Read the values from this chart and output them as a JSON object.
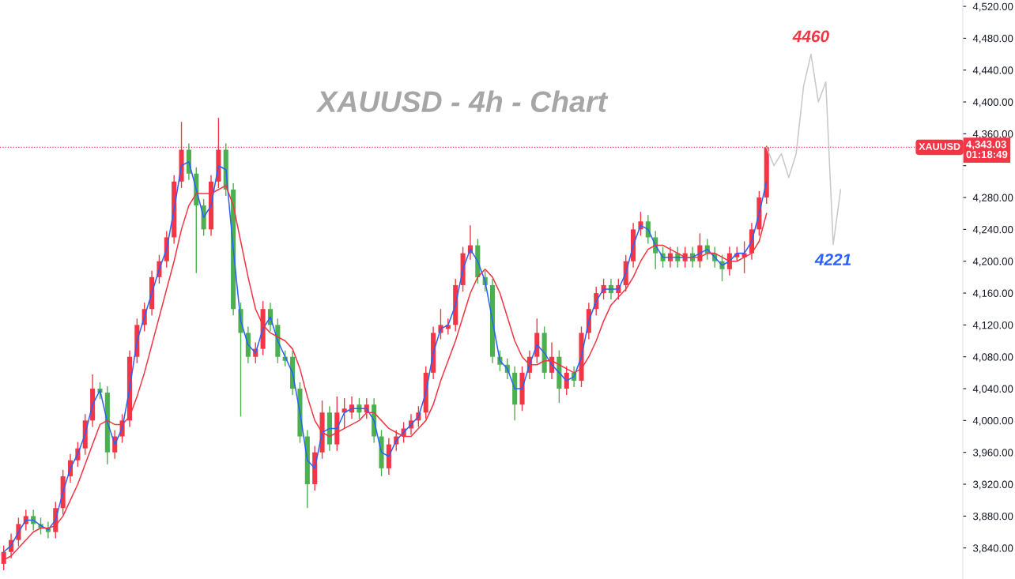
{
  "chart_data": {
    "type": "candlestick",
    "title": "XAUUSD - 4h - Chart",
    "categories": [
      null,
      null,
      null,
      null,
      null,
      null,
      null,
      null,
      null,
      null,
      null,
      null,
      null,
      null,
      null,
      null,
      null,
      null,
      null,
      null,
      null,
      null,
      null,
      null,
      null,
      null,
      null,
      null,
      null,
      null,
      null,
      null,
      null,
      null,
      null,
      null,
      null,
      null,
      null,
      null,
      null,
      null,
      null,
      null,
      null,
      null,
      null,
      null,
      null,
      null,
      null,
      null,
      null,
      null,
      null,
      null,
      null,
      null,
      null,
      null,
      null,
      null,
      null,
      null,
      null,
      null,
      null,
      null,
      null,
      null,
      null,
      null,
      null,
      null,
      null,
      null,
      null,
      null,
      null,
      null,
      null,
      null,
      null,
      null,
      null,
      null,
      null,
      null,
      null,
      null,
      null,
      null,
      null,
      null,
      null,
      null,
      null,
      null,
      null,
      null,
      null,
      null,
      null,
      null,
      null,
      null,
      null,
      null,
      null,
      null,
      null,
      null,
      null,
      null,
      null,
      null,
      null,
      null,
      null,
      null,
      null,
      null,
      null,
      null,
      null,
      null,
      null,
      null,
      null,
      null
    ],
    "ohlc": [
      [
        3820,
        3843,
        3812,
        3835
      ],
      [
        3835,
        3858,
        3827,
        3850
      ],
      [
        3850,
        3878,
        3842,
        3870
      ],
      [
        3870,
        3888,
        3862,
        3880
      ],
      [
        3880,
        3888,
        3862,
        3870
      ],
      [
        3870,
        3878,
        3857,
        3865
      ],
      [
        3865,
        3873,
        3852,
        3860
      ],
      [
        3860,
        3898,
        3852,
        3890
      ],
      [
        3890,
        3938,
        3882,
        3930
      ],
      [
        3930,
        3958,
        3922,
        3950
      ],
      [
        3950,
        3973,
        3942,
        3965
      ],
      [
        3965,
        4008,
        3957,
        4000
      ],
      [
        4000,
        4058,
        3992,
        4040
      ],
      [
        4040,
        4048,
        4027,
        4035
      ],
      [
        4035,
        4043,
        3945,
        3960
      ],
      [
        3960,
        3988,
        3952,
        3980
      ],
      [
        3980,
        4008,
        3972,
        4000
      ],
      [
        4000,
        4088,
        3992,
        4080
      ],
      [
        4080,
        4128,
        4072,
        4120
      ],
      [
        4120,
        4148,
        4112,
        4140
      ],
      [
        4140,
        4188,
        4132,
        4180
      ],
      [
        4180,
        4208,
        4172,
        4200
      ],
      [
        4200,
        4238,
        4192,
        4230
      ],
      [
        4230,
        4308,
        4222,
        4300
      ],
      [
        4300,
        4375,
        4292,
        4340
      ],
      [
        4340,
        4348,
        4302,
        4310
      ],
      [
        4310,
        4318,
        4185,
        4270
      ],
      [
        4270,
        4278,
        4232,
        4240
      ],
      [
        4240,
        4308,
        4232,
        4300
      ],
      [
        4300,
        4380,
        4292,
        4340
      ],
      [
        4340,
        4348,
        4282,
        4290
      ],
      [
        4290,
        4298,
        4132,
        4140
      ],
      [
        4140,
        4148,
        4005,
        4110
      ],
      [
        4110,
        4118,
        4072,
        4080
      ],
      [
        4080,
        4098,
        4072,
        4090
      ],
      [
        4090,
        4150,
        4082,
        4140
      ],
      [
        4140,
        4148,
        4112,
        4120
      ],
      [
        4120,
        4128,
        4072,
        4080
      ],
      [
        4080,
        4088,
        4068,
        4075
      ],
      [
        4080,
        4088,
        4032,
        4040
      ],
      [
        4040,
        4048,
        3972,
        3980
      ],
      [
        3980,
        3988,
        3890,
        3920
      ],
      [
        3920,
        3968,
        3912,
        3960
      ],
      [
        3960,
        4025,
        3952,
        4010
      ],
      [
        4010,
        4018,
        3962,
        3970
      ],
      [
        3970,
        4030,
        3962,
        4010
      ],
      [
        4010,
        4028,
        3990,
        4015
      ],
      [
        4010,
        4030,
        4002,
        4020
      ],
      [
        4020,
        4028,
        4002,
        4010
      ],
      [
        4010,
        4028,
        4002,
        4020
      ],
      [
        4020,
        4028,
        3972,
        3980
      ],
      [
        3980,
        3988,
        3930,
        3940
      ],
      [
        3940,
        3978,
        3932,
        3970
      ],
      [
        3970,
        3988,
        3962,
        3980
      ],
      [
        3980,
        3998,
        3972,
        3990
      ],
      [
        3990,
        4008,
        3982,
        4000
      ],
      [
        4000,
        4018,
        3992,
        4010
      ],
      [
        4010,
        4068,
        4002,
        4060
      ],
      [
        4060,
        4118,
        4052,
        4110
      ],
      [
        4110,
        4140,
        4102,
        4120
      ],
      [
        4115,
        4128,
        4108,
        4120
      ],
      [
        4120,
        4178,
        4112,
        4170
      ],
      [
        4170,
        4218,
        4162,
        4210
      ],
      [
        4210,
        4245,
        4202,
        4220
      ],
      [
        4220,
        4228,
        4172,
        4180
      ],
      [
        4180,
        4188,
        4162,
        4170
      ],
      [
        4170,
        4178,
        4072,
        4080
      ],
      [
        4080,
        4088,
        4062,
        4070
      ],
      [
        4070,
        4078,
        4052,
        4060
      ],
      [
        4060,
        4068,
        4000,
        4020
      ],
      [
        4020,
        4068,
        4012,
        4060
      ],
      [
        4060,
        4088,
        4052,
        4080
      ],
      [
        4080,
        4128,
        4072,
        4110
      ],
      [
        4110,
        4118,
        4052,
        4060
      ],
      [
        4060,
        4098,
        4052,
        4080
      ],
      [
        4080,
        4088,
        4022,
        4040
      ],
      [
        4040,
        4068,
        4032,
        4060
      ],
      [
        4060,
        4068,
        4042,
        4050
      ],
      [
        4050,
        4118,
        4042,
        4110
      ],
      [
        4110,
        4148,
        4102,
        4140
      ],
      [
        4140,
        4168,
        4132,
        4160
      ],
      [
        4160,
        4178,
        4152,
        4170
      ],
      [
        4170,
        4178,
        4152,
        4160
      ],
      [
        4160,
        4178,
        4152,
        4170
      ],
      [
        4170,
        4208,
        4162,
        4200
      ],
      [
        4200,
        4248,
        4192,
        4240
      ],
      [
        4240,
        4262,
        4232,
        4250
      ],
      [
        4250,
        4258,
        4222,
        4230
      ],
      [
        4230,
        4238,
        4190,
        4210
      ],
      [
        4210,
        4218,
        4192,
        4200
      ],
      [
        4200,
        4218,
        4192,
        4210
      ],
      [
        4210,
        4218,
        4192,
        4200
      ],
      [
        4200,
        4218,
        4192,
        4210
      ],
      [
        4210,
        4218,
        4192,
        4200
      ],
      [
        4200,
        4235,
        4192,
        4220
      ],
      [
        4220,
        4228,
        4202,
        4210
      ],
      [
        4210,
        4218,
        4192,
        4200
      ],
      [
        4200,
        4208,
        4175,
        4190
      ],
      [
        4190,
        4218,
        4182,
        4210
      ],
      [
        4205,
        4218,
        4200,
        4210
      ],
      [
        4205,
        4225,
        4185,
        4210
      ],
      [
        4210,
        4248,
        4202,
        4240
      ],
      [
        4240,
        4288,
        4232,
        4280
      ],
      [
        4280,
        4345,
        4272,
        4343
      ],
      null,
      null,
      null,
      null,
      null,
      null,
      null,
      null,
      null,
      null,
      null,
      null,
      null,
      null,
      null,
      null,
      null,
      null,
      null,
      null,
      null,
      null,
      null,
      null,
      null,
      null
    ],
    "colors": [
      "#f23645",
      "#f23645",
      "#f23645",
      "#f23645",
      "#4caf50",
      "#4caf50",
      "#4caf50",
      "#f23645",
      "#f23645",
      "#f23645",
      "#f23645",
      "#f23645",
      "#f23645",
      "#4caf50",
      "#4caf50",
      "#f23645",
      "#f23645",
      "#f23645",
      "#f23645",
      "#f23645",
      "#f23645",
      "#f23645",
      "#f23645",
      "#f23645",
      "#f23645",
      "#4caf50",
      "#4caf50",
      "#4caf50",
      "#f23645",
      "#f23645",
      "#4caf50",
      "#4caf50",
      "#4caf50",
      "#4caf50",
      "#f23645",
      "#f23645",
      "#4caf50",
      "#4caf50",
      "#4caf50",
      "#4caf50",
      "#4caf50",
      "#4caf50",
      "#f23645",
      "#f23645",
      "#4caf50",
      "#f23645",
      "#f23645",
      "#f23645",
      "#4caf50",
      "#f23645",
      "#4caf50",
      "#4caf50",
      "#f23645",
      "#f23645",
      "#f23645",
      "#f23645",
      "#f23645",
      "#f23645",
      "#f23645",
      "#f23645",
      "#f23645",
      "#f23645",
      "#f23645",
      "#f23645",
      "#4caf50",
      "#4caf50",
      "#4caf50",
      "#4caf50",
      "#4caf50",
      "#4caf50",
      "#f23645",
      "#f23645",
      "#f23645",
      "#4caf50",
      "#f23645",
      "#4caf50",
      "#f23645",
      "#4caf50",
      "#f23645",
      "#f23645",
      "#f23645",
      "#f23645",
      "#4caf50",
      "#f23645",
      "#f23645",
      "#f23645",
      "#f23645",
      "#4caf50",
      "#4caf50",
      "#4caf50",
      "#f23645",
      "#4caf50",
      "#f23645",
      "#4caf50",
      "#f23645",
      "#4caf50",
      "#4caf50",
      "#4caf50",
      "#f23645",
      "#f23645",
      "#f23645",
      "#f23645",
      "#f23645",
      "#f23645",
      null,
      null,
      null,
      null,
      null,
      null,
      null,
      null,
      null,
      null,
      null,
      null,
      null,
      null,
      null,
      null,
      null,
      null,
      null,
      null,
      null,
      null,
      null,
      null,
      null,
      null
    ],
    "series": [
      {
        "type": "line",
        "color": "#2962ff",
        "values": [
          3835,
          3843,
          3860,
          3875,
          3875,
          3868,
          3863,
          3875,
          3910,
          3940,
          3958,
          3983,
          4020,
          4038,
          3998,
          3970,
          3990,
          4040,
          4100,
          4130,
          4160,
          4190,
          4215,
          4265,
          4320,
          4325,
          4290,
          4255,
          4270,
          4320,
          4315,
          4215,
          4125,
          4095,
          4085,
          4115,
          4130,
          4100,
          4080,
          4060,
          4010,
          3950,
          3940,
          3985,
          3990,
          3990,
          4010,
          4015,
          4015,
          4015,
          4000,
          3960,
          3955,
          3975,
          3985,
          3995,
          4005,
          4035,
          4085,
          4115,
          4120,
          4145,
          4190,
          4215,
          4200,
          4175,
          4125,
          4075,
          4065,
          4040,
          4040,
          4070,
          4095,
          4085,
          4070,
          4060,
          4050,
          4055,
          4080,
          4125,
          4150,
          4165,
          4165,
          4165,
          4185,
          4220,
          4245,
          4240,
          4220,
          4205,
          4205,
          4205,
          4205,
          4205,
          4210,
          4215,
          4205,
          4195,
          4200,
          4210,
          4210,
          4225,
          4260,
          4300,
          null,
          null,
          null,
          null,
          null,
          null,
          null,
          null,
          null,
          null,
          null,
          null,
          null,
          null,
          null,
          null,
          null,
          null,
          null,
          null,
          null,
          null,
          null,
          null,
          null,
          null
        ]
      },
      {
        "type": "line",
        "color": "#f23645",
        "values": [
          3825,
          3830,
          3840,
          3850,
          3860,
          3865,
          3865,
          3868,
          3880,
          3900,
          3920,
          3945,
          3970,
          3995,
          4000,
          3995,
          3995,
          4005,
          4030,
          4060,
          4095,
          4130,
          4165,
          4200,
          4240,
          4270,
          4285,
          4285,
          4285,
          4290,
          4295,
          4270,
          4225,
          4180,
          4140,
          4120,
          4110,
          4105,
          4100,
          4090,
          4065,
          4030,
          4000,
          3985,
          3980,
          3985,
          3990,
          3995,
          4000,
          4010,
          4010,
          4000,
          3990,
          3985,
          3980,
          3980,
          3990,
          4000,
          4020,
          4050,
          4075,
          4100,
          4130,
          4160,
          4180,
          4190,
          4180,
          4160,
          4130,
          4100,
          4080,
          4070,
          4070,
          4075,
          4075,
          4070,
          4065,
          4060,
          4065,
          4080,
          4100,
          4125,
          4145,
          4155,
          4165,
          4180,
          4200,
          4215,
          4220,
          4220,
          4215,
          4210,
          4205,
          4205,
          4205,
          4210,
          4210,
          4205,
          4200,
          4200,
          4205,
          4210,
          4225,
          4260,
          null,
          null,
          null,
          null,
          null,
          null,
          null,
          null,
          null,
          null,
          null,
          null,
          null,
          null,
          null,
          null,
          null,
          null,
          null,
          null,
          null,
          null,
          null,
          null,
          null,
          null
        ]
      },
      {
        "type": "line",
        "color": "#c8c8c8",
        "values": [
          null,
          null,
          null,
          null,
          null,
          null,
          null,
          null,
          null,
          null,
          null,
          null,
          null,
          null,
          null,
          null,
          null,
          null,
          null,
          null,
          null,
          null,
          null,
          null,
          null,
          null,
          null,
          null,
          null,
          null,
          null,
          null,
          null,
          null,
          null,
          null,
          null,
          null,
          null,
          null,
          null,
          null,
          null,
          null,
          null,
          null,
          null,
          null,
          null,
          null,
          null,
          null,
          null,
          null,
          null,
          null,
          null,
          null,
          null,
          null,
          null,
          null,
          null,
          null,
          null,
          null,
          null,
          null,
          null,
          null,
          null,
          null,
          null,
          null,
          null,
          null,
          null,
          null,
          null,
          null,
          null,
          null,
          null,
          null,
          null,
          null,
          null,
          null,
          null,
          null,
          null,
          null,
          null,
          null,
          null,
          null,
          null,
          null,
          null,
          null,
          null,
          null,
          null,
          4343,
          4320,
          4335,
          4305,
          4335,
          4420,
          4460,
          4400,
          4425,
          4221,
          4290,
          null,
          null,
          null,
          null,
          null,
          null,
          null,
          null,
          null,
          null,
          null,
          null,
          null,
          null,
          null,
          null
        ]
      }
    ],
    "ylim": [
      3801,
      4528
    ],
    "yticks": [
      {
        "value": 3840,
        "label": "3,840.00"
      },
      {
        "value": 3880,
        "label": "3,880.00"
      },
      {
        "value": 3920,
        "label": "3,920.00"
      },
      {
        "value": 3960,
        "label": "3,960.00"
      },
      {
        "value": 4000,
        "label": "4,000.00"
      },
      {
        "value": 4040,
        "label": "4,040.00"
      },
      {
        "value": 4080,
        "label": "4,080.00"
      },
      {
        "value": 4120,
        "label": "4,120.00"
      },
      {
        "value": 4160,
        "label": "4,160.00"
      },
      {
        "value": 4200,
        "label": "4,200.00"
      },
      {
        "value": 4240,
        "label": "4,240.00"
      },
      {
        "value": 4280,
        "label": "4,280.00"
      },
      {
        "value": 4320,
        "label": null
      },
      {
        "value": 4360,
        "label": "4,360.00"
      },
      {
        "value": 4400,
        "label": "4,400.00"
      },
      {
        "value": 4440,
        "label": "4,440.00"
      },
      {
        "value": 4480,
        "label": "4,480.00"
      },
      {
        "value": 4520,
        "label": "4,520.00"
      }
    ],
    "tick_labels": "y",
    "ref_lines": [
      {
        "axis": "y",
        "value": 4343.03,
        "label": "XAUUSD",
        "color": "#f23645",
        "line_style": "dotted"
      }
    ],
    "annotations": [
      {
        "text": "4460",
        "y": 4460
      },
      {
        "text": "4221",
        "y": 4221
      },
      "4,343.03",
      "01:18:49"
    ]
  }
}
